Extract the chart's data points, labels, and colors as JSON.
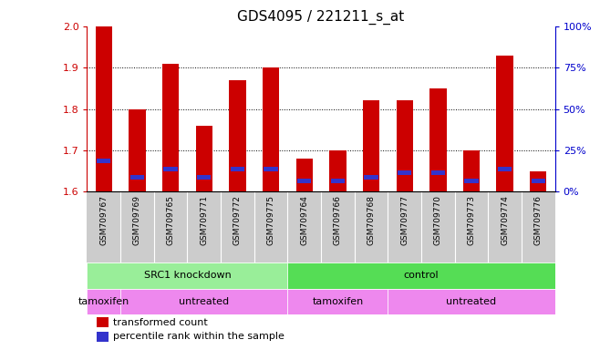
{
  "title": "GDS4095 / 221211_s_at",
  "samples": [
    "GSM709767",
    "GSM709769",
    "GSM709765",
    "GSM709771",
    "GSM709772",
    "GSM709775",
    "GSM709764",
    "GSM709766",
    "GSM709768",
    "GSM709777",
    "GSM709770",
    "GSM709773",
    "GSM709774",
    "GSM709776"
  ],
  "bar_tops": [
    2.0,
    1.8,
    1.91,
    1.76,
    1.87,
    1.9,
    1.68,
    1.7,
    1.82,
    1.82,
    1.85,
    1.7,
    1.93,
    1.65
  ],
  "bar_bottoms": [
    1.6,
    1.6,
    1.6,
    1.6,
    1.6,
    1.6,
    1.6,
    1.6,
    1.6,
    1.6,
    1.6,
    1.6,
    1.6,
    1.6
  ],
  "blue_positions": [
    1.675,
    1.635,
    1.655,
    1.635,
    1.655,
    1.655,
    1.625,
    1.625,
    1.635,
    1.645,
    1.645,
    1.625,
    1.655,
    1.625
  ],
  "bar_color": "#cc0000",
  "blue_color": "#3333cc",
  "ylim": [
    1.6,
    2.0
  ],
  "yticks": [
    1.6,
    1.7,
    1.8,
    1.9,
    2.0
  ],
  "right_yticks": [
    0,
    25,
    50,
    75,
    100
  ],
  "right_ytick_labels": [
    "0%",
    "25%",
    "50%",
    "75%",
    "100%"
  ],
  "ylabel_color": "#cc0000",
  "right_ylabel_color": "#0000cc",
  "genotype_color": "#99ee99",
  "genotype_color2": "#55dd55",
  "agent_color": "#ee88ee",
  "geno_groups": [
    {
      "label": "SRC1 knockdown",
      "start": 0,
      "end": 5
    },
    {
      "label": "control",
      "start": 6,
      "end": 13
    }
  ],
  "agent_groups": [
    {
      "label": "tamoxifen",
      "start": 0,
      "end": 0
    },
    {
      "label": "untreated",
      "start": 1,
      "end": 5
    },
    {
      "label": "tamoxifen",
      "start": 6,
      "end": 8
    },
    {
      "label": "untreated",
      "start": 9,
      "end": 13
    }
  ],
  "legend_red": "transformed count",
  "legend_blue": "percentile rank within the sample",
  "title_fontsize": 11,
  "bar_width": 0.5
}
